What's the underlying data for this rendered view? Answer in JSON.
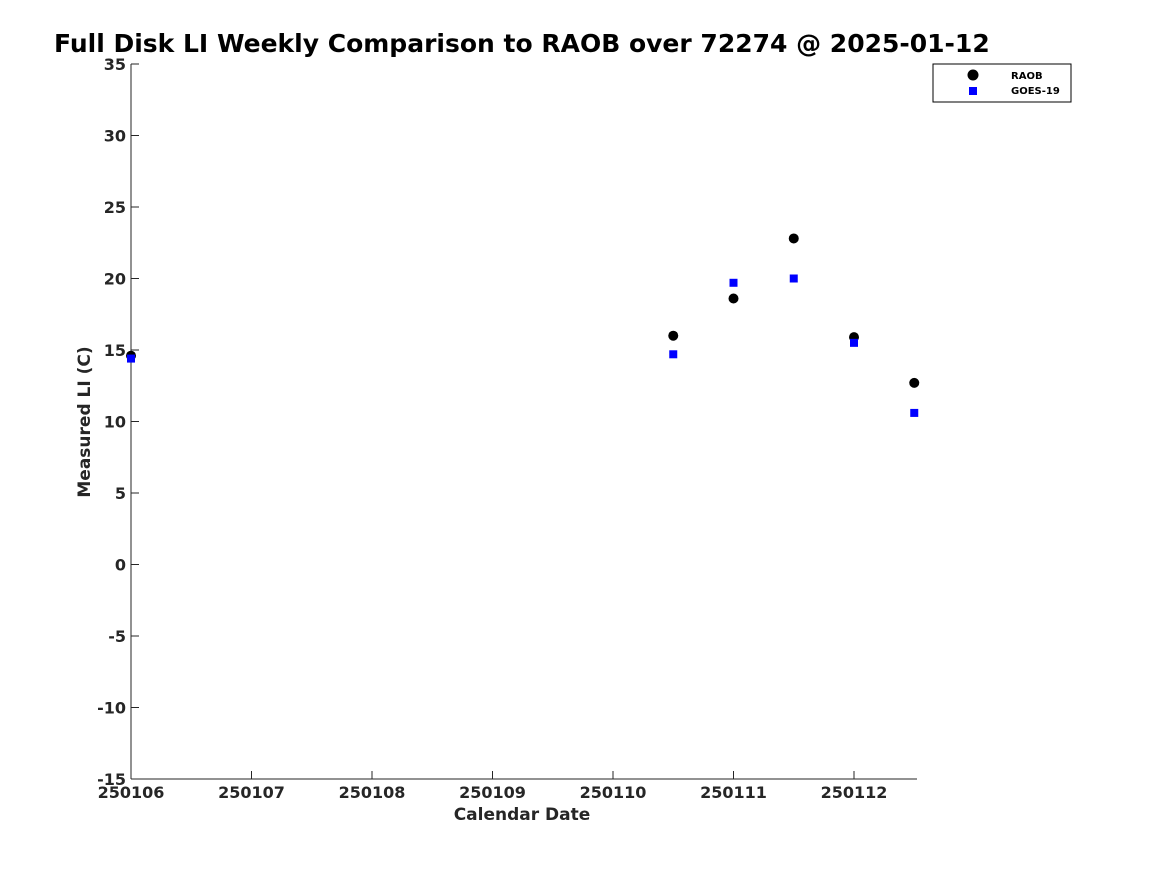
{
  "chart_data": {
    "type": "scatter",
    "title": "Full Disk LI Weekly Comparison to RAOB over 72274 @ 2025-01-12",
    "xlabel": "Calendar Date",
    "ylabel": "Measured LI (C)",
    "x_ticks": [
      "250106",
      "250107",
      "250108",
      "250109",
      "250110",
      "250111",
      "250112"
    ],
    "y_ticks": [
      35,
      30,
      25,
      20,
      15,
      10,
      5,
      0,
      -5,
      -10,
      -15
    ],
    "ylim": [
      -15,
      35
    ],
    "xlim": [
      "250106",
      "2501125"
    ],
    "grid": false,
    "legend_position": "top-right",
    "series": [
      {
        "name": "RAOB",
        "marker": "circle",
        "color": "#000000",
        "points": [
          {
            "x": "2501060",
            "y": 14.6
          },
          {
            "x": "2501105",
            "y": 16.0
          },
          {
            "x": "2501110",
            "y": 18.6
          },
          {
            "x": "2501115",
            "y": 22.8
          },
          {
            "x": "2501120",
            "y": 15.9
          },
          {
            "x": "2501125",
            "y": 12.7
          }
        ]
      },
      {
        "name": "GOES-19",
        "marker": "square",
        "color": "#0000ff",
        "points": [
          {
            "x": "2501060",
            "y": 14.4
          },
          {
            "x": "2501105",
            "y": 14.7
          },
          {
            "x": "2501110",
            "y": 19.7
          },
          {
            "x": "2501115",
            "y": 20.0
          },
          {
            "x": "2501120",
            "y": 15.5
          },
          {
            "x": "2501125",
            "y": 10.6
          }
        ]
      }
    ]
  }
}
